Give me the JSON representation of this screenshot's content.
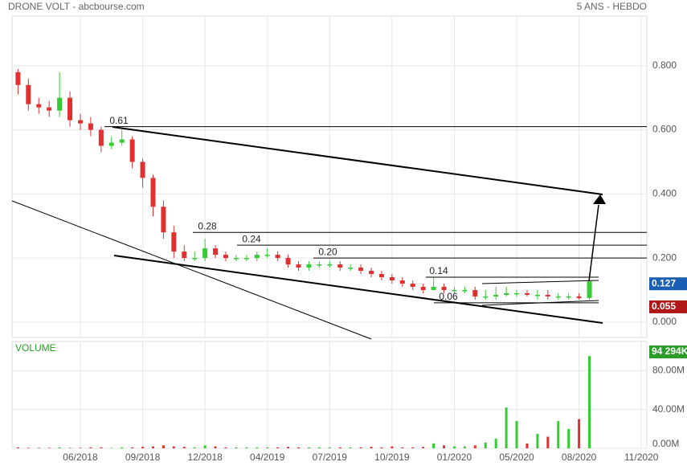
{
  "chart_data": {
    "type": "candlestick",
    "title": "DRONE VOLT - abcbourse.com",
    "subtitle": "5 ANS - HEBDO",
    "volume_label": "VOLUME",
    "categories": [
      null,
      null,
      null,
      null,
      null,
      null,
      "06/2018",
      null,
      null,
      null,
      null,
      null,
      "09/2018",
      null,
      null,
      null,
      null,
      null,
      "12/2018",
      null,
      null,
      null,
      null,
      null,
      "04/2019",
      null,
      null,
      null,
      null,
      null,
      "07/2019",
      null,
      null,
      null,
      null,
      null,
      "10/2019",
      null,
      null,
      null,
      null,
      null,
      "01/2020",
      null,
      null,
      null,
      null,
      null,
      "05/2020",
      null,
      null,
      null,
      null,
      null,
      "08/2020",
      null,
      null,
      null,
      null,
      null,
      "11/2020"
    ],
    "open": [
      0.78,
      0.74,
      0.68,
      0.67,
      0.66,
      0.7,
      0.63,
      0.62,
      0.6,
      0.55,
      0.56,
      0.57,
      0.5,
      0.45,
      0.36,
      0.28,
      0.22,
      0.2,
      0.2,
      0.23,
      0.21,
      0.2,
      0.2,
      0.2,
      0.21,
      0.21,
      0.2,
      0.18,
      0.17,
      0.18,
      0.18,
      0.18,
      0.17,
      0.17,
      0.16,
      0.15,
      0.14,
      0.13,
      0.12,
      0.11,
      0.1,
      0.11,
      0.1,
      0.1,
      0.1,
      0.08,
      0.08,
      0.085,
      0.09,
      0.09,
      0.085,
      0.085,
      0.08,
      0.08,
      0.08,
      0.075,
      null,
      null,
      null,
      null,
      null
    ],
    "high": [
      0.79,
      0.76,
      0.7,
      0.69,
      0.78,
      0.72,
      0.65,
      0.64,
      0.61,
      0.58,
      0.6,
      0.58,
      0.51,
      0.46,
      0.38,
      0.3,
      0.24,
      0.22,
      0.26,
      0.24,
      0.22,
      0.21,
      0.21,
      0.22,
      0.23,
      0.22,
      0.21,
      0.19,
      0.19,
      0.19,
      0.19,
      0.19,
      0.18,
      0.18,
      0.17,
      0.16,
      0.15,
      0.14,
      0.13,
      0.12,
      0.14,
      0.12,
      0.11,
      0.11,
      0.11,
      0.1,
      0.11,
      0.11,
      0.1,
      0.1,
      0.1,
      0.1,
      0.09,
      0.09,
      0.09,
      0.14,
      null,
      null,
      null,
      null,
      null
    ],
    "low": [
      0.71,
      0.66,
      0.65,
      0.64,
      0.64,
      0.61,
      0.6,
      0.58,
      0.53,
      0.54,
      0.55,
      0.48,
      0.42,
      0.33,
      0.26,
      0.2,
      0.19,
      0.19,
      0.19,
      0.2,
      0.19,
      0.19,
      0.19,
      0.19,
      0.2,
      0.19,
      0.17,
      0.16,
      0.16,
      0.17,
      0.17,
      0.16,
      0.16,
      0.15,
      0.14,
      0.13,
      0.12,
      0.11,
      0.1,
      0.09,
      0.1,
      0.09,
      0.09,
      0.09,
      0.07,
      0.07,
      0.07,
      0.08,
      0.08,
      0.08,
      0.07,
      0.07,
      0.07,
      0.07,
      0.07,
      0.07,
      null,
      null,
      null,
      null,
      null
    ],
    "close": [
      0.74,
      0.68,
      0.67,
      0.66,
      0.7,
      0.63,
      0.62,
      0.6,
      0.55,
      0.56,
      0.57,
      0.5,
      0.45,
      0.36,
      0.28,
      0.22,
      0.2,
      0.2,
      0.23,
      0.21,
      0.2,
      0.2,
      0.2,
      0.21,
      0.21,
      0.2,
      0.18,
      0.17,
      0.18,
      0.18,
      0.18,
      0.17,
      0.17,
      0.16,
      0.15,
      0.14,
      0.13,
      0.12,
      0.11,
      0.1,
      0.11,
      0.1,
      0.1,
      0.1,
      0.08,
      0.08,
      0.085,
      0.09,
      0.09,
      0.085,
      0.085,
      0.08,
      0.08,
      0.08,
      0.075,
      0.127,
      null,
      null,
      null,
      null,
      null
    ],
    "volume": [
      1,
      0.5,
      0.5,
      0.5,
      1,
      0.5,
      0.5,
      1,
      1,
      0.5,
      1,
      1,
      1.5,
      2,
      3,
      2,
      1.5,
      1,
      3,
      2,
      1,
      1,
      1,
      1,
      1,
      1,
      1.5,
      1,
      1,
      1,
      1,
      1,
      1,
      1,
      1.5,
      1,
      2,
      1,
      1,
      1.5,
      5,
      3,
      2,
      2,
      3,
      6,
      10,
      42,
      28,
      5,
      15,
      12,
      28,
      20,
      30,
      95,
      null,
      null,
      null,
      null,
      null
    ],
    "up_color": "#33cc33",
    "down_color": "#e03030",
    "ylim": [
      -0.048,
      0.955
    ],
    "yticks": [
      {
        "value": 0,
        "label": "0.000"
      },
      {
        "value": 0.2,
        "label": "0.200"
      },
      {
        "value": 0.4,
        "label": "0.400"
      },
      {
        "value": 0.6,
        "label": "0.600"
      },
      {
        "value": 0.8,
        "label": "0.800"
      }
    ],
    "volume_ylim": [
      0,
      110
    ],
    "volume_ticks": [
      {
        "value": 0,
        "label": "0.00M"
      },
      {
        "value": 40,
        "label": "40.00M"
      },
      {
        "value": 80,
        "label": "80.00M"
      }
    ],
    "levels": [
      {
        "value": 0.61,
        "label": "0.61"
      },
      {
        "value": 0.28,
        "label": "0.28"
      },
      {
        "value": 0.24,
        "label": "0.24"
      },
      {
        "value": 0.2,
        "label": "0.20"
      },
      {
        "value": 0.14,
        "label": "0.14"
      },
      {
        "value": 0.06,
        "label": "0.06"
      }
    ],
    "last_price": {
      "value": 0.127,
      "label": "0.127",
      "color": "#1a5fb4"
    },
    "support_price": {
      "value": 0.055,
      "label": "0.055",
      "color": "#b01818"
    },
    "last_volume": {
      "value": 94.294,
      "label": "94 294K",
      "color": "#2a9d2a"
    },
    "grid": true
  }
}
